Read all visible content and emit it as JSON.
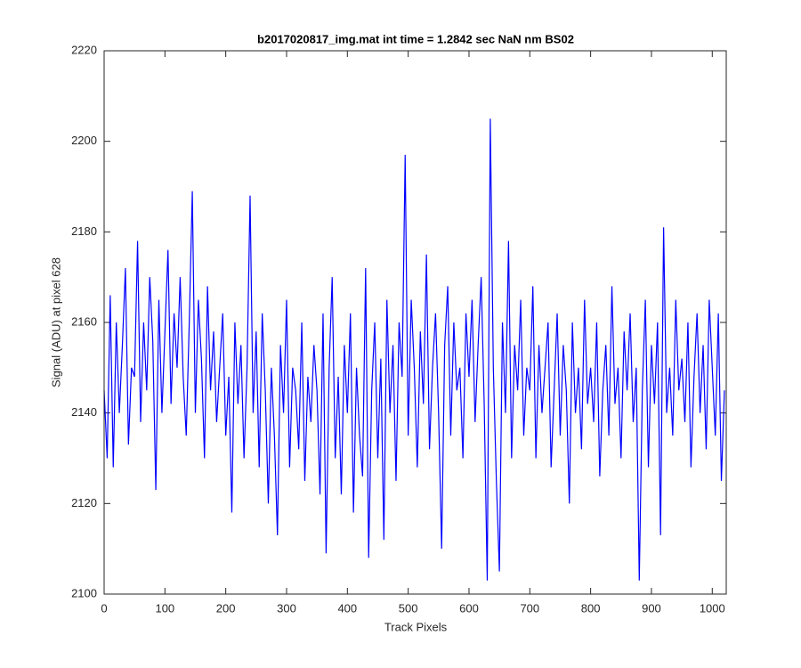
{
  "chart_data": {
    "type": "line",
    "title": "b2017020817_img.mat int time = 1.2842 sec  NaN nm BS02",
    "x_label": "Track Pixels",
    "y_label": "Signal (ADU) at pixel 628",
    "xlim": [
      0,
      1023
    ],
    "ylim": [
      2100,
      2220
    ],
    "xticks": [
      0,
      100,
      200,
      300,
      400,
      500,
      600,
      700,
      800,
      900,
      1000
    ],
    "yticks": [
      2100,
      2120,
      2140,
      2160,
      2180,
      2200,
      2220
    ],
    "x": [
      0,
      5,
      10,
      15,
      20,
      25,
      30,
      35,
      40,
      45,
      50,
      55,
      60,
      65,
      70,
      75,
      80,
      85,
      90,
      95,
      100,
      105,
      110,
      115,
      120,
      125,
      130,
      135,
      140,
      145,
      150,
      155,
      160,
      165,
      170,
      175,
      180,
      185,
      190,
      195,
      200,
      205,
      210,
      215,
      220,
      225,
      230,
      235,
      240,
      245,
      250,
      255,
      260,
      265,
      270,
      275,
      280,
      285,
      290,
      295,
      300,
      305,
      310,
      315,
      320,
      325,
      330,
      335,
      340,
      345,
      350,
      355,
      360,
      365,
      370,
      375,
      380,
      385,
      390,
      395,
      400,
      405,
      410,
      415,
      420,
      425,
      430,
      435,
      440,
      445,
      450,
      455,
      460,
      465,
      470,
      475,
      480,
      485,
      490,
      495,
      500,
      505,
      510,
      515,
      520,
      525,
      530,
      535,
      540,
      545,
      550,
      555,
      560,
      565,
      570,
      575,
      580,
      585,
      590,
      595,
      600,
      605,
      610,
      615,
      620,
      625,
      630,
      635,
      640,
      645,
      650,
      655,
      660,
      665,
      670,
      675,
      680,
      685,
      690,
      695,
      700,
      705,
      710,
      715,
      720,
      725,
      730,
      735,
      740,
      745,
      750,
      755,
      760,
      765,
      770,
      775,
      780,
      785,
      790,
      795,
      800,
      805,
      810,
      815,
      820,
      825,
      830,
      835,
      840,
      845,
      850,
      855,
      860,
      865,
      870,
      875,
      880,
      885,
      890,
      895,
      900,
      905,
      910,
      915,
      920,
      925,
      930,
      935,
      940,
      945,
      950,
      955,
      960,
      965,
      970,
      975,
      980,
      985,
      990,
      995,
      1000,
      1005,
      1010,
      1015,
      1020
    ],
    "series": [
      {
        "color": "#0000ff",
        "values": [
          2145,
          2130,
          2166,
          2128,
          2160,
          2140,
          2155,
          2172,
          2133,
          2150,
          2148,
          2178,
          2138,
          2160,
          2145,
          2170,
          2156,
          2123,
          2165,
          2140,
          2158,
          2176,
          2142,
          2162,
          2150,
          2170,
          2148,
          2135,
          2160,
          2189,
          2140,
          2165,
          2152,
          2130,
          2168,
          2145,
          2158,
          2138,
          2150,
          2162,
          2135,
          2148,
          2118,
          2160,
          2142,
          2155,
          2130,
          2150,
          2188,
          2140,
          2158,
          2128,
          2162,
          2145,
          2120,
          2150,
          2135,
          2113,
          2155,
          2140,
          2165,
          2128,
          2150,
          2145,
          2132,
          2160,
          2125,
          2148,
          2138,
          2155,
          2145,
          2122,
          2162,
          2109,
          2150,
          2170,
          2130,
          2148,
          2122,
          2155,
          2140,
          2162,
          2118,
          2150,
          2135,
          2126,
          2172,
          2108,
          2145,
          2160,
          2130,
          2152,
          2112,
          2165,
          2140,
          2155,
          2125,
          2160,
          2148,
          2197,
          2135,
          2165,
          2150,
          2128,
          2158,
          2142,
          2175,
          2132,
          2150,
          2162,
          2140,
          2110,
          2155,
          2168,
          2135,
          2160,
          2145,
          2150,
          2130,
          2162,
          2148,
          2165,
          2138,
          2155,
          2170,
          2142,
          2103,
          2205,
          2150,
          2125,
          2105,
          2160,
          2140,
          2178,
          2130,
          2155,
          2145,
          2165,
          2135,
          2150,
          2145,
          2168,
          2130,
          2155,
          2140,
          2150,
          2160,
          2128,
          2145,
          2162,
          2135,
          2155,
          2145,
          2120,
          2160,
          2140,
          2150,
          2132,
          2165,
          2142,
          2150,
          2138,
          2160,
          2126,
          2145,
          2155,
          2135,
          2168,
          2142,
          2150,
          2130,
          2158,
          2145,
          2162,
          2138,
          2150,
          2103,
          2145,
          2165,
          2128,
          2155,
          2142,
          2160,
          2113,
          2181,
          2140,
          2150,
          2135,
          2165,
          2145,
          2152,
          2138,
          2160,
          2128,
          2148,
          2162,
          2140,
          2155,
          2132,
          2165,
          2150,
          2135,
          2162,
          2125,
          2145
        ]
      }
    ],
    "grid": false
  }
}
